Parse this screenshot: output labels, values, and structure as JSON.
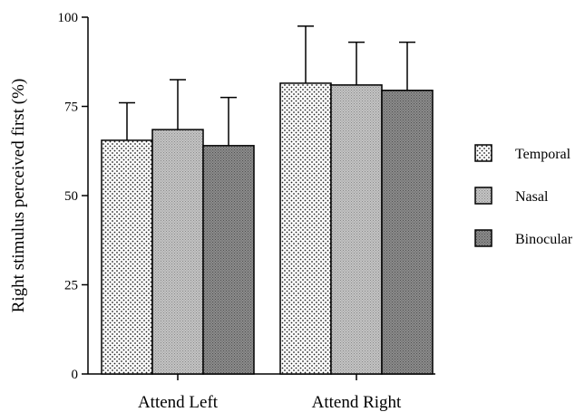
{
  "chart_data": {
    "type": "bar",
    "ylabel": "Right stimulus perceived first (%)",
    "xlabel": "",
    "ylim": [
      0,
      100
    ],
    "yticks": [
      0,
      25,
      50,
      75,
      100
    ],
    "categories": [
      "Attend Left",
      "Attend Right"
    ],
    "series": [
      {
        "name": "Temporal",
        "values": [
          65.5,
          81.5
        ],
        "errors": [
          10.5,
          16
        ]
      },
      {
        "name": "Nasal",
        "values": [
          68.5,
          81
        ],
        "errors": [
          14,
          12
        ]
      },
      {
        "name": "Binocular",
        "values": [
          64,
          79.5
        ],
        "errors": [
          13.5,
          13.5
        ]
      }
    ],
    "legend_position": "right",
    "grid": false,
    "series_patterns": [
      "sparse-dots",
      "dense-light-gray",
      "dense-dark-gray"
    ]
  }
}
